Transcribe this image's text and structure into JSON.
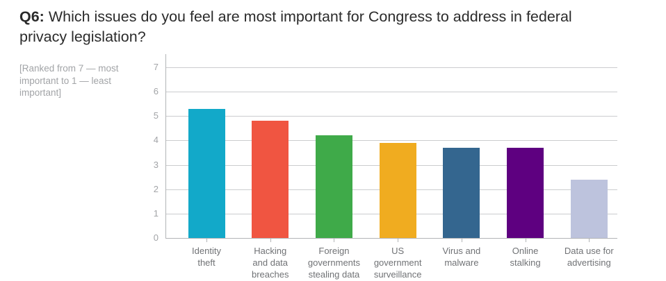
{
  "header": {
    "prefix": "Q6:",
    "line1": "Which issues do you feel are most important for Congress to address in federal",
    "line2": "privacy legislation?"
  },
  "note": {
    "lines": [
      "[Ranked from 7 — most",
      "important to 1 — least",
      "important]"
    ]
  },
  "chart_data": {
    "type": "bar",
    "title": "Q6: Which issues do you feel are most important for Congress to address in federal privacy legislation?",
    "note": "[Ranked from 7 — most important to 1 — least important]",
    "categories": [
      "Identity theft",
      "Hacking and data breaches",
      "Foreign governments stealing data",
      "US government surveillance",
      "Virus and malware",
      "Online stalking",
      "Data use for advertising"
    ],
    "label_lines": [
      [
        "Identity",
        "theft"
      ],
      [
        "Hacking",
        "and data",
        "breaches"
      ],
      [
        "Foreign",
        "governments",
        "stealing data"
      ],
      [
        "US",
        "government",
        "surveillance"
      ],
      [
        "Virus and",
        "malware"
      ],
      [
        "Online",
        "stalking"
      ],
      [
        "Data use for",
        "advertising"
      ]
    ],
    "values": [
      5.3,
      4.8,
      4.2,
      3.9,
      3.7,
      3.7,
      2.4
    ],
    "bar_colors": [
      "#12a9c9",
      "#f05541",
      "#3faa49",
      "#f0ac20",
      "#34668f",
      "#5e0080",
      "#bdc3dd"
    ],
    "yticks": [
      0,
      1,
      2,
      3,
      4,
      5,
      6,
      7
    ],
    "ylim": [
      0,
      7
    ],
    "xlabel": "",
    "ylabel": "",
    "grid": true,
    "legend": false
  },
  "colors": {
    "title_text": "#2b2b2b",
    "note_text": "#a2a4a7",
    "axis_tick_text": "#a2a4a7",
    "category_text": "#707275",
    "gridline": "#cbccce",
    "axis_line": "#b2b4b6",
    "background": "#ffffff"
  }
}
